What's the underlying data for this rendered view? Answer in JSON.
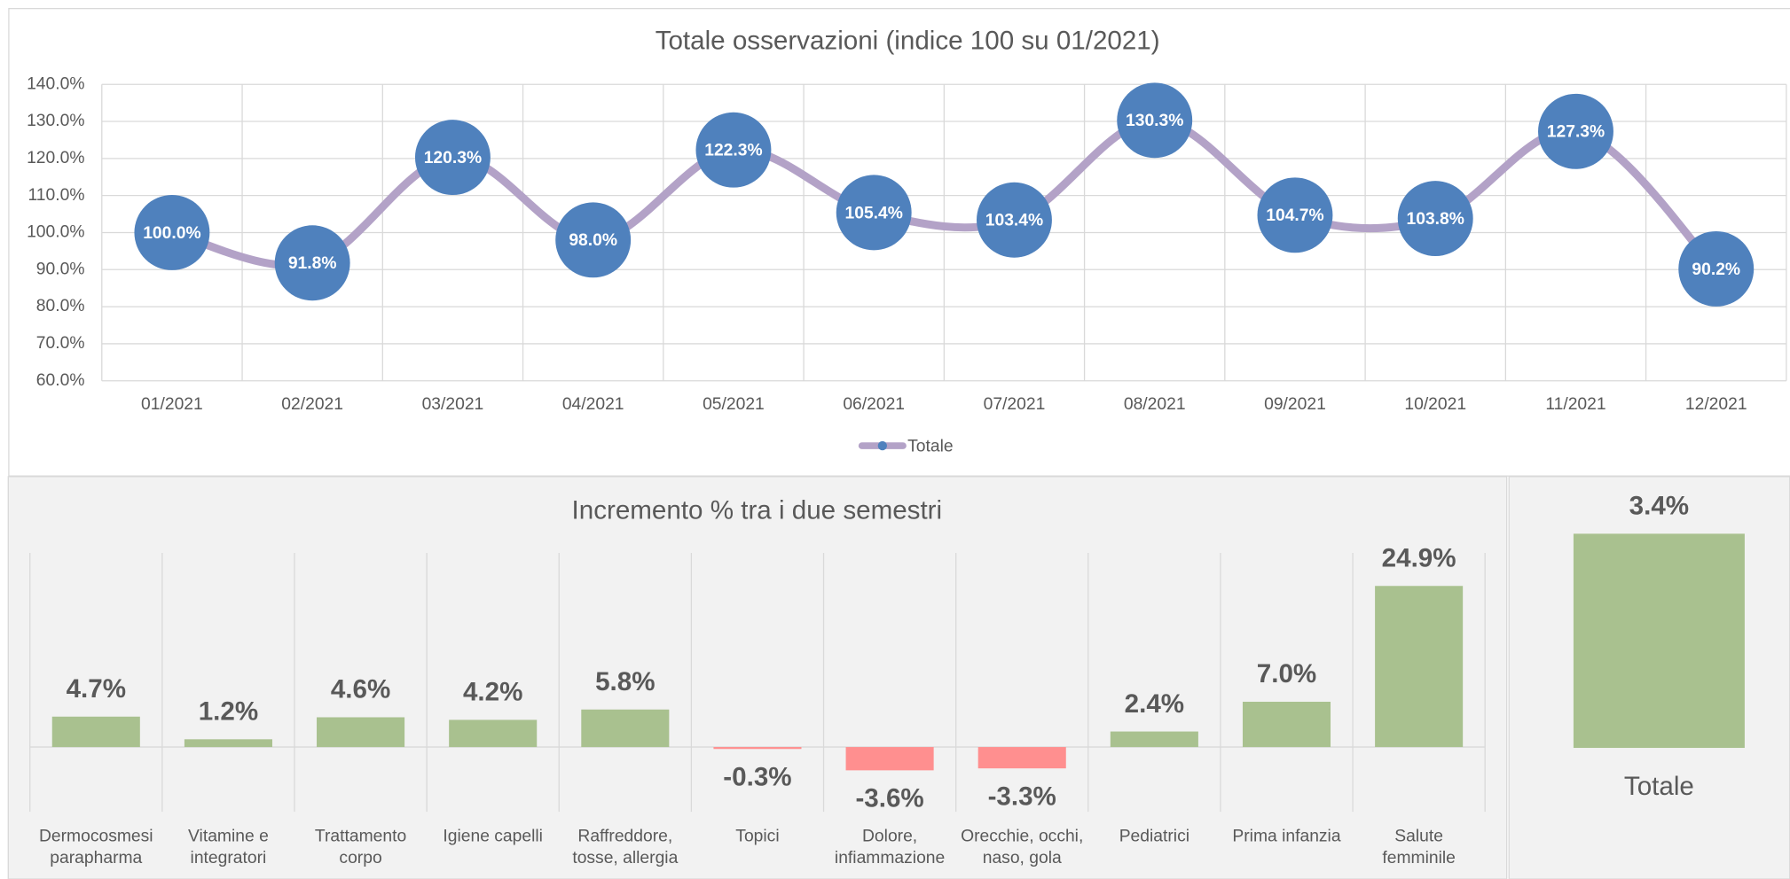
{
  "chart_data": [
    {
      "type": "line",
      "title": "Totale osservazioni (indice 100 su 01/2021)",
      "categories": [
        "01/2021",
        "02/2021",
        "03/2021",
        "04/2021",
        "05/2021",
        "06/2021",
        "07/2021",
        "08/2021",
        "09/2021",
        "10/2021",
        "11/2021",
        "12/2021"
      ],
      "series": [
        {
          "name": "Totale",
          "color": "#b3a2c7",
          "marker_color": "#4f81bd",
          "values": [
            100.0,
            91.8,
            120.3,
            98.0,
            122.3,
            105.4,
            103.4,
            130.3,
            104.7,
            103.8,
            127.3,
            90.2
          ],
          "value_labels": [
            "100.0%",
            "91.8%",
            "120.3%",
            "98.0%",
            "122.3%",
            "105.4%",
            "103.4%",
            "130.3%",
            "104.7%",
            "103.8%",
            "127.3%",
            "90.2%"
          ]
        }
      ],
      "ylim": [
        60,
        140
      ],
      "yticks": [
        {
          "value": 60,
          "label": "60.0%"
        },
        {
          "value": 70,
          "label": "70.0%"
        },
        {
          "value": 80,
          "label": "80.0%"
        },
        {
          "value": 90,
          "label": "90.0%"
        },
        {
          "value": 100,
          "label": "100.0%"
        },
        {
          "value": 110,
          "label": "110.0%"
        },
        {
          "value": 120,
          "label": "120.0%"
        },
        {
          "value": 130,
          "label": "130.0%"
        },
        {
          "value": 140,
          "label": "140.0%"
        }
      ],
      "grid": true,
      "legend": "bottom"
    },
    {
      "type": "bar",
      "title": "Incremento % tra i due semestri",
      "categories": [
        "Dermocosmesi\nparapharma",
        "Vitamine e\nintegratori",
        "Trattamento\ncorpo",
        "Igiene capelli",
        "Raffreddore,\ntosse, allergia",
        "Topici",
        "Dolore,\ninfiammazione",
        "Orecchie, occhi,\nnaso, gola",
        "Pediatrici",
        "Prima infanzia",
        "Salute\nfemminile"
      ],
      "values": [
        4.7,
        1.2,
        4.6,
        4.2,
        5.8,
        -0.3,
        -3.6,
        -3.3,
        2.4,
        7.0,
        24.9
      ],
      "value_labels": [
        "4.7%",
        "1.2%",
        "4.6%",
        "4.2%",
        "5.8%",
        "-0.3%",
        "-3.6%",
        "-3.3%",
        "2.4%",
        "7.0%",
        "24.9%"
      ],
      "color": "#a9c18f",
      "negative_color": "#ff8f8f",
      "ylim": [
        -10,
        30
      ],
      "grid": true
    },
    {
      "type": "bar",
      "categories": [
        "Totale"
      ],
      "values": [
        3.4
      ],
      "value_labels": [
        "3.4%"
      ],
      "color": "#a9c18f",
      "ylim": [
        0,
        4
      ],
      "grid": false
    }
  ]
}
